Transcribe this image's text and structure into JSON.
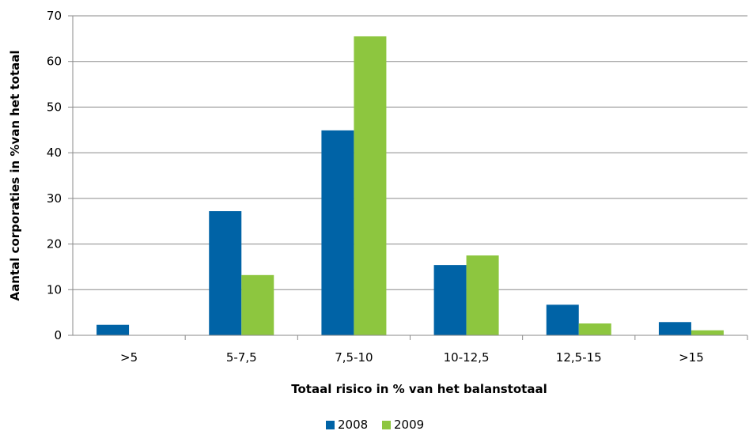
{
  "chart_data": {
    "type": "bar",
    "categories": [
      ">5",
      "5-7,5",
      "7,5-10",
      "10-12,5",
      "12,5-15",
      ">15"
    ],
    "series": [
      {
        "name": "2008",
        "color": "#0063a6",
        "values": [
          2.3,
          27.2,
          44.9,
          15.4,
          6.7,
          2.9
        ]
      },
      {
        "name": "2009",
        "color": "#8dc63f",
        "values": [
          0,
          13.2,
          65.5,
          17.5,
          2.6,
          1.1
        ]
      }
    ],
    "xlabel": "Totaal risico in % van het balanstotaal",
    "ylabel": "Aantal corporaties in %van het totaal",
    "ylim": [
      0,
      70
    ],
    "yticks": [
      0,
      10,
      20,
      30,
      40,
      50,
      60,
      70
    ],
    "grid": true,
    "legend_position": "bottom"
  }
}
